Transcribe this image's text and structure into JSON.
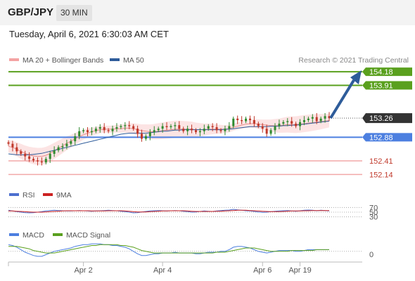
{
  "header": {
    "symbol": "GBP/JPY",
    "timeframe": "30 MIN",
    "datetime": "Tuesday, April 6, 2021 6:30:03 AM CET"
  },
  "colors": {
    "ma20": "#f4a3a3",
    "ma50": "#2e5c9a",
    "resistance": "#5aa01e",
    "support": "#4c7fe0",
    "support_minor": "#f2a9a9",
    "candle_up": "#2f8a2f",
    "candle_down": "#c0392b",
    "rsi": "#4c6fcf",
    "rsi_ma": "#cc2222",
    "macd": "#4c7fe0",
    "macd_signal": "#5aa01e",
    "arrow": "#2e5c9a",
    "current_price_bg": "#333333"
  },
  "chart_data": [
    {
      "type": "line",
      "name": "price",
      "legend": [
        {
          "label": "MA 20 + Bollinger Bands",
          "color": "#f4a3a3"
        },
        {
          "label": "MA 50",
          "color": "#2e5c9a"
        }
      ],
      "source_text": "Research © 2021 Trading Central",
      "ylim": [
        151.95,
        154.35
      ],
      "current_price": 153.26,
      "levels": [
        {
          "value": 154.18,
          "label": "154.18",
          "kind": "resistance"
        },
        {
          "value": 153.91,
          "label": "153.91",
          "kind": "resistance"
        },
        {
          "value": 152.88,
          "label": "152.88",
          "kind": "pivot"
        },
        {
          "value": 152.41,
          "label": "152.41",
          "kind": "support"
        },
        {
          "value": 152.14,
          "label": "152.14",
          "kind": "support"
        }
      ],
      "arrow": {
        "from": 153.26,
        "to": 154.18
      },
      "close_series": [
        152.75,
        152.68,
        152.6,
        152.55,
        152.5,
        152.45,
        152.42,
        152.4,
        152.38,
        152.45,
        152.55,
        152.62,
        152.68,
        152.7,
        152.75,
        152.8,
        152.9,
        153.0,
        153.02,
        152.98,
        153.0,
        153.05,
        153.08,
        153.02,
        153.0,
        153.05,
        153.08,
        153.1,
        153.12,
        153.1,
        153.05,
        152.95,
        152.85,
        152.9,
        152.98,
        153.02,
        153.05,
        153.1,
        153.08,
        153.1,
        153.12,
        153.05,
        153.0,
        153.05,
        153.02,
        152.98,
        153.0,
        153.05,
        153.1,
        153.08,
        153.02,
        153.0,
        153.05,
        153.1,
        153.25,
        153.22,
        153.2,
        153.25,
        153.22,
        153.15,
        153.1,
        153.05,
        152.95,
        153.02,
        153.1,
        153.15,
        153.18,
        153.2,
        153.15,
        153.1,
        153.18,
        153.22,
        153.25,
        153.28,
        153.2,
        153.25,
        153.3,
        153.26
      ],
      "ma20_series": [
        152.7,
        152.68,
        152.64,
        152.6,
        152.56,
        152.53,
        152.51,
        152.5,
        152.5,
        152.52,
        152.56,
        152.61,
        152.66,
        152.71,
        152.76,
        152.8,
        152.85,
        152.89,
        152.93,
        152.96,
        152.99,
        153.01,
        153.03,
        153.04,
        153.04,
        153.04,
        153.05,
        153.05,
        153.06,
        153.06,
        153.05,
        153.03,
        153.01,
        153.0,
        152.99,
        152.99,
        153.0,
        153.01,
        153.02,
        153.03,
        153.04,
        153.04,
        153.04,
        153.04,
        153.04,
        153.03,
        153.03,
        153.03,
        153.04,
        153.04,
        153.04,
        153.04,
        153.04,
        153.05,
        153.08,
        153.1,
        153.12,
        153.14,
        153.15,
        153.15,
        153.14,
        153.13,
        153.12,
        153.11,
        153.11,
        153.11,
        153.12,
        153.13,
        153.13,
        153.13,
        153.14,
        153.15,
        153.16,
        153.17,
        153.18,
        153.19,
        153.2,
        153.21
      ],
      "ma50_series": [
        152.55,
        152.54,
        152.53,
        152.53,
        152.53,
        152.53,
        152.54,
        152.55,
        152.56,
        152.58,
        152.6,
        152.62,
        152.64,
        152.66,
        152.68,
        152.7,
        152.72,
        152.74,
        152.76,
        152.78,
        152.8,
        152.82,
        152.84,
        152.86,
        152.88,
        152.9,
        152.92,
        152.94,
        152.95,
        152.96,
        152.96,
        152.96,
        152.96,
        152.96,
        152.97,
        152.98,
        152.99,
        153.0,
        153.0,
        153.01,
        153.02,
        153.02,
        153.03,
        153.03,
        153.03,
        153.03,
        153.03,
        153.03,
        153.03,
        153.03,
        153.03,
        153.03,
        153.04,
        153.04,
        153.05,
        153.06,
        153.07,
        153.08,
        153.09,
        153.09,
        153.09,
        153.09,
        153.09,
        153.1,
        153.1,
        153.1,
        153.11,
        153.11,
        153.12,
        153.12,
        153.13,
        153.14,
        153.15,
        153.16,
        153.17,
        153.18,
        153.19,
        153.2
      ]
    },
    {
      "type": "line",
      "name": "RSI",
      "legend": [
        {
          "label": "RSI",
          "color": "#4c6fcf"
        },
        {
          "label": "9MA",
          "color": "#cc2222"
        }
      ],
      "ylim": [
        20,
        80
      ],
      "levels": [
        {
          "value": 70,
          "label": "70"
        },
        {
          "value": 50,
          "label": "50"
        },
        {
          "value": 30,
          "label": "30"
        }
      ],
      "rsi_series": [
        58,
        55,
        52,
        50,
        48,
        47,
        48,
        50,
        52,
        55,
        57,
        58,
        57,
        56,
        55,
        55,
        56,
        57,
        56,
        55,
        54,
        55,
        56,
        57,
        58,
        57,
        56,
        54,
        52,
        50,
        47,
        48,
        51,
        53,
        55,
        56,
        57,
        56,
        55,
        56,
        57,
        56,
        54,
        52,
        50,
        51,
        53,
        55,
        54,
        53,
        55,
        57,
        58,
        59,
        62,
        60,
        58,
        56,
        55,
        53,
        51,
        49,
        50,
        52,
        54,
        55,
        56,
        57,
        55,
        54,
        56,
        58,
        59,
        58,
        56,
        58,
        57,
        55
      ],
      "ma_series": [
        55,
        55,
        54,
        53,
        52,
        51,
        50,
        50,
        50,
        51,
        52,
        53,
        54,
        55,
        56,
        56,
        56,
        56,
        56,
        56,
        55,
        55,
        55,
        55,
        56,
        56,
        56,
        56,
        55,
        54,
        52,
        51,
        51,
        51,
        52,
        53,
        54,
        55,
        55,
        56,
        56,
        56,
        56,
        55,
        54,
        53,
        53,
        53,
        53,
        53,
        54,
        54,
        55,
        56,
        57,
        58,
        58,
        58,
        57,
        56,
        55,
        54,
        53,
        52,
        52,
        52,
        53,
        54,
        55,
        55,
        55,
        56,
        56,
        57,
        57,
        57,
        57,
        57
      ]
    },
    {
      "type": "line",
      "name": "MACD",
      "legend": [
        {
          "label": "MACD",
          "color": "#4c7fe0"
        },
        {
          "label": "MACD Signal",
          "color": "#5aa01e"
        }
      ],
      "ylim": [
        -0.12,
        0.15
      ],
      "zero_label": "0",
      "macd_series": [
        0.08,
        0.07,
        0.05,
        0.02,
        -0.01,
        -0.03,
        -0.05,
        -0.06,
        -0.06,
        -0.04,
        -0.02,
        0.0,
        0.01,
        0.02,
        0.03,
        0.04,
        0.06,
        0.07,
        0.08,
        0.08,
        0.09,
        0.09,
        0.09,
        0.08,
        0.08,
        0.07,
        0.07,
        0.06,
        0.05,
        0.03,
        0.0,
        -0.03,
        -0.05,
        -0.05,
        -0.04,
        -0.03,
        -0.03,
        -0.02,
        -0.02,
        -0.02,
        -0.01,
        -0.02,
        -0.02,
        -0.02,
        -0.02,
        -0.03,
        -0.03,
        -0.02,
        -0.01,
        -0.01,
        -0.01,
        0.0,
        0.0,
        0.02,
        0.05,
        0.06,
        0.06,
        0.05,
        0.04,
        0.02,
        0.0,
        -0.01,
        -0.02,
        -0.01,
        0.0,
        0.01,
        0.01,
        0.01,
        0.01,
        0.0,
        0.0,
        0.01,
        0.02,
        0.02,
        0.02,
        0.02,
        0.02,
        0.02
      ],
      "signal_series": [
        0.06,
        0.06,
        0.06,
        0.05,
        0.04,
        0.03,
        0.01,
        0.0,
        -0.01,
        -0.02,
        -0.02,
        -0.02,
        -0.01,
        0.0,
        0.01,
        0.02,
        0.03,
        0.04,
        0.05,
        0.06,
        0.07,
        0.07,
        0.08,
        0.08,
        0.08,
        0.08,
        0.08,
        0.07,
        0.07,
        0.06,
        0.05,
        0.03,
        0.01,
        0.0,
        -0.01,
        -0.02,
        -0.02,
        -0.02,
        -0.02,
        -0.02,
        -0.02,
        -0.02,
        -0.02,
        -0.02,
        -0.02,
        -0.02,
        -0.02,
        -0.02,
        -0.02,
        -0.02,
        -0.01,
        -0.01,
        -0.01,
        0.0,
        0.01,
        0.02,
        0.03,
        0.04,
        0.04,
        0.04,
        0.03,
        0.02,
        0.01,
        0.0,
        0.0,
        0.0,
        0.0,
        0.0,
        0.01,
        0.01,
        0.01,
        0.01,
        0.01,
        0.01,
        0.02,
        0.02,
        0.02,
        0.02
      ]
    }
  ],
  "x_axis": {
    "ticks": [
      {
        "label": "Apr 2",
        "index": 18
      },
      {
        "label": "Apr 4",
        "index": 37
      },
      {
        "label": "Apr 6",
        "index": 61
      },
      {
        "label": "Apr 19",
        "index": 70
      }
    ]
  }
}
